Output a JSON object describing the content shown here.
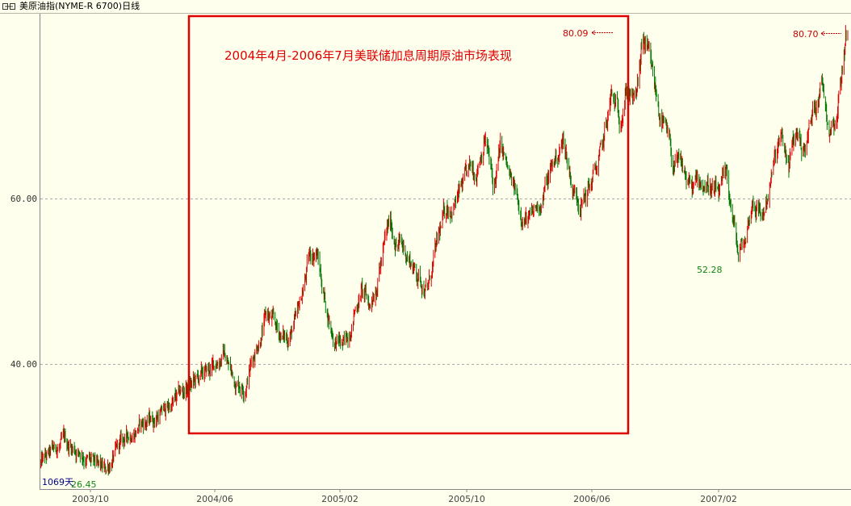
{
  "window": {
    "title": "美原油指(NYME-R 6700)日线",
    "icon": "link-icon"
  },
  "colors": {
    "background": "#ffffee",
    "up": "#dd0000",
    "down": "#007700",
    "grid": "#aaaaaa",
    "highlight_box": "#e00000"
  },
  "chart_data": {
    "type": "line",
    "title": "",
    "xlabel": "",
    "ylabel": "",
    "y_ticks": [
      40.0,
      60.0
    ],
    "y_tick_labels": [
      "40.00",
      "60.00"
    ],
    "ylim": [
      24.5,
      83
    ],
    "grid": "horizontal dashed",
    "x_tick_labels": [
      "2003/10",
      "2004/06",
      "2005/02",
      "2005/10",
      "2006/06",
      "2007/02"
    ],
    "xlim": [
      "2003-06-01",
      "2007-07-30"
    ],
    "series": [
      {
        "x": [
          "2003-06-01",
          "2003-07-15",
          "2003-08-15",
          "2003-09-15",
          "2003-10-01",
          "2003-11-01",
          "2003-12-01",
          "2004-01-01",
          "2004-02-01",
          "2004-03-01",
          "2004-04-01",
          "2004-04-20",
          "2004-05-10",
          "2004-06-01",
          "2004-06-20",
          "2004-07-10",
          "2004-08-01",
          "2004-08-20",
          "2004-09-05",
          "2004-09-25",
          "2004-10-20",
          "2004-11-01",
          "2004-11-20",
          "2004-12-05",
          "2004-12-25",
          "2005-01-10",
          "2005-01-25",
          "2005-02-10",
          "2005-03-01",
          "2005-03-20",
          "2005-04-01",
          "2005-04-20",
          "2005-05-10",
          "2005-05-30",
          "2005-06-20",
          "2005-07-05",
          "2005-07-25",
          "2005-08-10",
          "2005-08-30",
          "2005-09-15",
          "2005-10-01",
          "2005-10-15",
          "2005-11-01",
          "2005-11-20",
          "2005-12-10",
          "2006-01-05",
          "2006-01-20",
          "2006-02-10",
          "2006-03-01",
          "2006-03-20",
          "2006-04-10",
          "2006-04-25",
          "2006-05-10",
          "2006-05-25",
          "2006-06-10",
          "2006-06-25",
          "2006-07-10",
          "2006-08-01",
          "2006-08-20",
          "2006-09-05",
          "2006-09-25",
          "2006-10-10",
          "2006-10-25",
          "2006-11-10",
          "2006-11-25",
          "2006-12-15",
          "2007-01-05",
          "2007-01-18",
          "2007-02-01",
          "2007-02-20",
          "2007-03-10",
          "2007-03-25",
          "2007-04-10",
          "2007-04-25",
          "2007-05-10",
          "2007-05-25",
          "2007-06-10",
          "2007-06-25",
          "2007-07-10",
          "2007-07-28"
        ],
        "y": [
          28,
          30.5,
          29.5,
          27.5,
          27.0,
          30.5,
          32.5,
          33.5,
          35,
          37,
          38.5,
          39.5,
          41.5,
          38,
          37.5,
          42,
          46,
          44,
          43,
          45,
          53,
          54,
          47,
          43,
          42,
          46,
          49,
          47,
          52,
          57,
          55,
          53.5,
          51,
          49,
          55,
          59,
          60,
          62,
          64,
          68,
          61,
          66,
          62,
          59,
          57,
          61,
          64,
          67,
          61,
          60,
          63,
          66,
          72,
          70,
          74,
          71,
          79,
          73,
          68,
          64,
          63,
          61,
          62,
          62,
          60,
          62,
          53,
          55,
          60,
          58,
          63,
          67,
          64,
          68,
          66,
          70,
          75,
          69,
          71,
          80.7
        ]
      }
    ],
    "annotations": {
      "highlight_box": {
        "x_from": "2004-04-01",
        "x_to": "2006-07-15",
        "label": "2004年4月-2006年7月美联储加息周期原油市场表现"
      },
      "high_1": {
        "label": "80.09",
        "x": "2006-07-12",
        "y": 80.09
      },
      "high_2": {
        "label": "80.70",
        "x": "2007-07-27",
        "y": 80.7
      },
      "low_1": {
        "label": "52.28",
        "x": "2007-01-18",
        "y": 52.28
      },
      "low_2": {
        "label": "26.45",
        "x": "2003-10-10",
        "y": 26.45
      },
      "days_label": "1069天"
    }
  }
}
